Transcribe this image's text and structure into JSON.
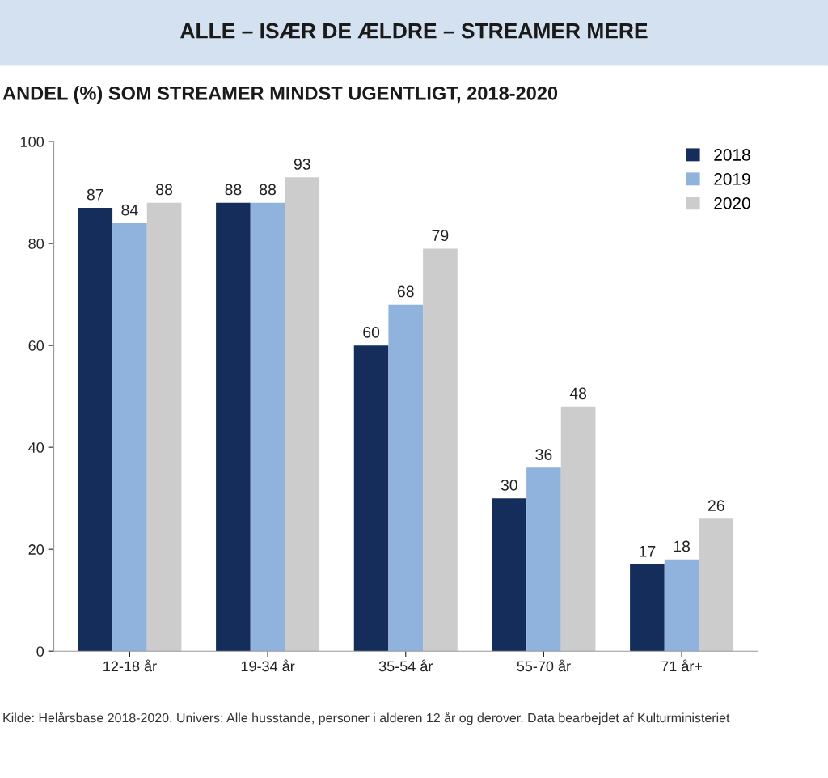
{
  "chart_data": {
    "type": "bar",
    "title": "ALLE – ISÆR DE ÆLDRE – STREAMER MERE",
    "subtitle": "ANDEL (%) SOM STREAMER MINDST UGENTLIGT, 2018-2020",
    "categories": [
      "12-18 år",
      "19-34 år",
      "35-54 år",
      "55-70 år",
      "71 år+"
    ],
    "series": [
      {
        "name": "2018",
        "color": "#142d5a",
        "values": [
          87,
          88,
          60,
          30,
          17
        ]
      },
      {
        "name": "2019",
        "color": "#8fb3dc",
        "values": [
          84,
          88,
          68,
          36,
          18
        ]
      },
      {
        "name": "2020",
        "color": "#cccccc",
        "values": [
          88,
          93,
          79,
          48,
          26
        ]
      }
    ],
    "ylim": [
      0,
      100
    ],
    "yticks": [
      0,
      20,
      40,
      60,
      80,
      100
    ],
    "grid": false,
    "legend": "top right",
    "data_labels": true,
    "annotations": [
      "Kilde: Helårsbase 2018-2020. Univers: Alle husstande, personer i alderen 12 år og derover. Data bearbejdet af Kulturministeriet"
    ]
  }
}
